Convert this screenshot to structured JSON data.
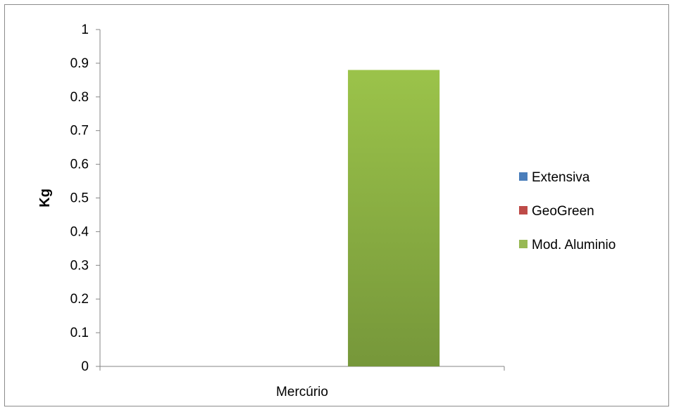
{
  "chart_data": {
    "type": "bar",
    "title": "",
    "xlabel": "",
    "ylabel": "Kg",
    "categories": [
      "Mercúrio"
    ],
    "series": [
      {
        "name": "Extensiva",
        "values": [
          0
        ],
        "color": "#4a7ebb"
      },
      {
        "name": "GeoGreen",
        "values": [
          0
        ],
        "color": "#be4b48"
      },
      {
        "name": "Mod. Aluminio",
        "values": [
          0.88
        ],
        "color": "#98b954"
      }
    ],
    "ylim": [
      0,
      1
    ],
    "yticks": [
      "0",
      "0.1",
      "0.2",
      "0.3",
      "0.4",
      "0.5",
      "0.6",
      "0.7",
      "0.8",
      "0.9",
      "1"
    ],
    "grid": false,
    "legend_position": "right"
  }
}
